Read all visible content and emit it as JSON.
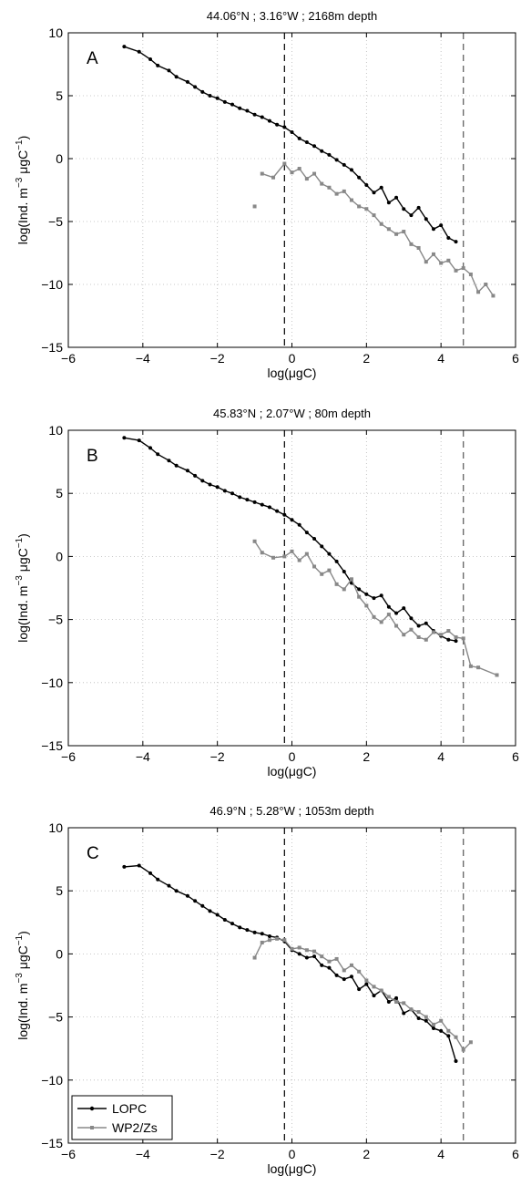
{
  "chart_data": [
    {
      "type": "line",
      "panel_label": "A",
      "title": "44.06°N ; 3.16°W ; 2168m depth",
      "xlabel": "log(μgC)",
      "ylabel_parts": [
        "log(Ind. m",
        "−3",
        " μgC",
        "−1",
        ")"
      ],
      "xlim": [
        -6,
        6
      ],
      "ylim": [
        -15,
        10
      ],
      "xticks": [
        "−6",
        "−4",
        "−2",
        "0",
        "2",
        "4",
        "6"
      ],
      "yticks": [
        "−15",
        "−10",
        "−5",
        "0",
        "5",
        "10"
      ],
      "grid": true,
      "vlines": [
        -0.2,
        4.6
      ],
      "series": [
        {
          "name": "LOPC",
          "color": "#000000",
          "x": [
            -4.5,
            -4.1,
            -3.8,
            -3.6,
            -3.3,
            -3.1,
            -2.8,
            -2.6,
            -2.4,
            -2.2,
            -2.0,
            -1.8,
            -1.6,
            -1.4,
            -1.2,
            -1.0,
            -0.8,
            -0.6,
            -0.4,
            -0.2,
            0.0,
            0.2,
            0.4,
            0.6,
            0.8,
            1.0,
            1.2,
            1.4,
            1.6,
            1.8,
            2.0,
            2.2,
            2.4,
            2.6,
            2.8,
            3.0,
            3.2,
            3.4,
            3.6,
            3.8,
            4.0,
            4.2,
            4.4
          ],
          "y": [
            8.9,
            8.5,
            7.9,
            7.4,
            7.0,
            6.5,
            6.1,
            5.7,
            5.3,
            5.0,
            4.8,
            4.5,
            4.3,
            4.0,
            3.8,
            3.5,
            3.3,
            3.0,
            2.7,
            2.5,
            2.1,
            1.6,
            1.3,
            1.0,
            0.6,
            0.3,
            -0.1,
            -0.5,
            -0.9,
            -1.5,
            -2.1,
            -2.7,
            -2.3,
            -3.5,
            -3.1,
            -4.0,
            -4.5,
            -3.9,
            -4.8,
            -5.6,
            -5.3,
            -6.3,
            -6.6
          ]
        },
        {
          "name": "WP2/Zs",
          "color": "#888888",
          "x": [
            -1.0,
            -0.8,
            -0.5,
            -0.2,
            0.0,
            0.2,
            0.4,
            0.6,
            0.8,
            1.0,
            1.2,
            1.4,
            1.6,
            1.8,
            2.0,
            2.2,
            2.4,
            2.6,
            2.8,
            3.0,
            3.2,
            3.4,
            3.6,
            3.8,
            4.0,
            4.2,
            4.4,
            4.6,
            4.8,
            5.0,
            5.2,
            5.4
          ],
          "y": [
            -3.8,
            -1.2,
            -1.5,
            -0.4,
            -1.1,
            -0.8,
            -1.6,
            -1.2,
            -2.0,
            -2.3,
            -2.8,
            -2.6,
            -3.3,
            -3.8,
            -4.0,
            -4.5,
            -5.2,
            -5.6,
            -6.0,
            -5.8,
            -6.8,
            -7.1,
            -8.2,
            -7.6,
            -8.3,
            -8.1,
            -8.9,
            -8.7,
            -9.2,
            -10.6,
            -10.0,
            -10.9
          ]
        }
      ]
    },
    {
      "type": "line",
      "panel_label": "B",
      "title": "45.83°N ; 2.07°W ; 80m depth",
      "xlabel": "log(μgC)",
      "ylabel_parts": [
        "log(Ind. m",
        "−3",
        " μgC",
        "−1",
        ")"
      ],
      "xlim": [
        -6,
        6
      ],
      "ylim": [
        -15,
        10
      ],
      "xticks": [
        "−6",
        "−4",
        "−2",
        "0",
        "2",
        "4",
        "6"
      ],
      "yticks": [
        "−15",
        "−10",
        "−5",
        "0",
        "5",
        "10"
      ],
      "grid": true,
      "vlines": [
        -0.2,
        4.6
      ],
      "series": [
        {
          "name": "LOPC",
          "color": "#000000",
          "x": [
            -4.5,
            -4.1,
            -3.8,
            -3.6,
            -3.3,
            -3.1,
            -2.8,
            -2.6,
            -2.4,
            -2.2,
            -2.0,
            -1.8,
            -1.6,
            -1.4,
            -1.2,
            -1.0,
            -0.8,
            -0.6,
            -0.4,
            -0.2,
            0.0,
            0.2,
            0.4,
            0.6,
            0.8,
            1.0,
            1.2,
            1.4,
            1.6,
            1.8,
            2.0,
            2.2,
            2.4,
            2.6,
            2.8,
            3.0,
            3.2,
            3.4,
            3.6,
            3.8,
            4.0,
            4.2,
            4.4
          ],
          "y": [
            9.4,
            9.2,
            8.6,
            8.1,
            7.6,
            7.2,
            6.8,
            6.4,
            6.0,
            5.7,
            5.5,
            5.2,
            5.0,
            4.7,
            4.5,
            4.3,
            4.1,
            3.9,
            3.6,
            3.3,
            2.9,
            2.5,
            1.9,
            1.4,
            0.8,
            0.2,
            -0.4,
            -1.2,
            -2.1,
            -2.6,
            -3.0,
            -3.3,
            -3.1,
            -4.0,
            -4.5,
            -4.1,
            -4.9,
            -5.5,
            -5.3,
            -5.9,
            -6.3,
            -6.6,
            -6.7
          ]
        },
        {
          "name": "WP2/Zs",
          "color": "#888888",
          "x": [
            -1.0,
            -0.8,
            -0.5,
            -0.2,
            0.0,
            0.2,
            0.4,
            0.6,
            0.8,
            1.0,
            1.2,
            1.4,
            1.6,
            1.8,
            2.0,
            2.2,
            2.4,
            2.6,
            2.8,
            3.0,
            3.2,
            3.4,
            3.6,
            3.8,
            4.0,
            4.2,
            4.4,
            4.6,
            4.8,
            5.0,
            5.5
          ],
          "y": [
            1.2,
            0.3,
            -0.1,
            0.0,
            0.4,
            -0.3,
            0.2,
            -0.8,
            -1.4,
            -1.1,
            -2.2,
            -2.6,
            -1.8,
            -3.2,
            -3.9,
            -4.8,
            -5.2,
            -4.6,
            -5.5,
            -6.2,
            -5.8,
            -6.4,
            -6.6,
            -6.0,
            -6.2,
            -5.9,
            -6.4,
            -6.5,
            -8.7,
            -8.8,
            -9.4
          ]
        }
      ]
    },
    {
      "type": "line",
      "panel_label": "C",
      "title": "46.9°N ; 5.28°W ; 1053m depth",
      "xlabel": "log(μgC)",
      "ylabel_parts": [
        "log(Ind. m",
        "−3",
        " μgC",
        "−1",
        ")"
      ],
      "xlim": [
        -6,
        6
      ],
      "ylim": [
        -15,
        10
      ],
      "xticks": [
        "−6",
        "−4",
        "−2",
        "0",
        "2",
        "4",
        "6"
      ],
      "yticks": [
        "−15",
        "−10",
        "−5",
        "0",
        "5",
        "10"
      ],
      "grid": true,
      "vlines": [
        -0.2,
        4.6
      ],
      "series": [
        {
          "name": "LOPC",
          "color": "#000000",
          "x": [
            -4.5,
            -4.1,
            -3.8,
            -3.6,
            -3.3,
            -3.1,
            -2.8,
            -2.6,
            -2.4,
            -2.2,
            -2.0,
            -1.8,
            -1.6,
            -1.4,
            -1.2,
            -1.0,
            -0.8,
            -0.6,
            -0.4,
            -0.2,
            0.0,
            0.2,
            0.4,
            0.6,
            0.8,
            1.0,
            1.2,
            1.4,
            1.6,
            1.8,
            2.0,
            2.2,
            2.4,
            2.6,
            2.8,
            3.0,
            3.2,
            3.4,
            3.6,
            3.8,
            4.0,
            4.2,
            4.4
          ],
          "y": [
            6.9,
            7.0,
            6.4,
            5.9,
            5.4,
            5.0,
            4.6,
            4.2,
            3.8,
            3.4,
            3.1,
            2.7,
            2.4,
            2.1,
            1.9,
            1.7,
            1.6,
            1.4,
            1.3,
            1.0,
            0.3,
            0.0,
            -0.3,
            -0.2,
            -0.9,
            -1.1,
            -1.7,
            -2.0,
            -1.8,
            -2.8,
            -2.4,
            -3.3,
            -2.9,
            -3.8,
            -3.5,
            -4.7,
            -4.4,
            -5.1,
            -5.3,
            -5.9,
            -6.1,
            -6.5,
            -8.5
          ]
        },
        {
          "name": "WP2/Zs",
          "color": "#888888",
          "x": [
            -1.0,
            -0.8,
            -0.6,
            -0.4,
            -0.2,
            0.0,
            0.2,
            0.4,
            0.6,
            0.8,
            1.0,
            1.2,
            1.4,
            1.6,
            1.8,
            2.0,
            2.2,
            2.4,
            2.6,
            2.8,
            3.0,
            3.2,
            3.4,
            3.6,
            3.8,
            4.0,
            4.2,
            4.4,
            4.6,
            4.8
          ],
          "y": [
            -0.3,
            0.9,
            1.1,
            1.2,
            1.1,
            0.4,
            0.5,
            0.3,
            0.2,
            -0.2,
            -0.6,
            -0.4,
            -1.3,
            -0.9,
            -1.4,
            -2.1,
            -2.6,
            -2.9,
            -3.4,
            -3.8,
            -3.9,
            -4.4,
            -4.6,
            -5.0,
            -5.6,
            -5.3,
            -6.1,
            -6.6,
            -7.6,
            -7.0
          ]
        }
      ]
    }
  ],
  "legend": {
    "items": [
      {
        "label": "LOPC",
        "color": "#000000"
      },
      {
        "label": "WP2/Zs",
        "color": "#888888"
      }
    ],
    "placement": "bottom-left of panel C"
  }
}
